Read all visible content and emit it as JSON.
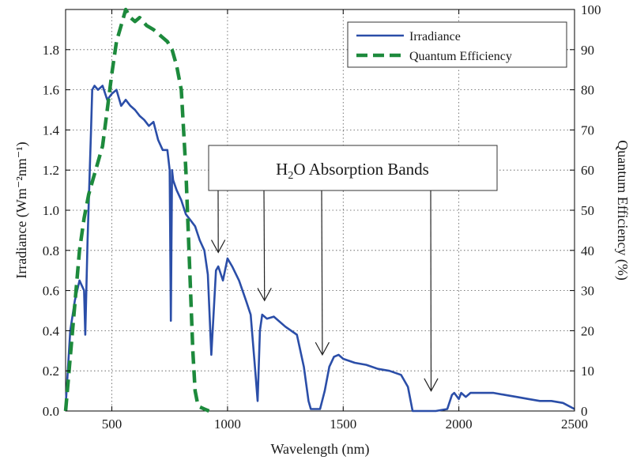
{
  "chart_data": {
    "type": "line",
    "title": "",
    "xlabel": "Wavelength (nm)",
    "ylabel": "Irradiance (Wm⁻²nm⁻¹)",
    "y2label": "Quantum Efficiency (%)",
    "xlim": [
      300,
      2500
    ],
    "ylim": [
      0,
      2.0
    ],
    "y2lim": [
      0,
      100
    ],
    "xticks": [
      500,
      1000,
      1500,
      2000,
      2500
    ],
    "yticks": [
      0.0,
      0.2,
      0.4,
      0.6,
      0.8,
      1.0,
      1.2,
      1.4,
      1.6,
      1.8
    ],
    "ytick_labels": [
      "0.0",
      "0.2",
      "0.4",
      "0.6",
      "0.8",
      "1.0",
      "1.2",
      "1.4",
      "1.6",
      "1.8"
    ],
    "y2ticks": [
      0,
      10,
      20,
      30,
      40,
      50,
      60,
      70,
      80,
      90,
      100
    ],
    "grid": true,
    "legend_position": "top-right",
    "series": [
      {
        "name": "Irradiance",
        "axis": "left",
        "color": "#2b4ea8",
        "style": "solid",
        "x": [
          300,
          320,
          340,
          360,
          380,
          385,
          395,
          410,
          415,
          425,
          440,
          460,
          480,
          500,
          520,
          540,
          560,
          580,
          600,
          620,
          640,
          660,
          680,
          700,
          720,
          740,
          750,
          755,
          760,
          765,
          780,
          800,
          820,
          840,
          860,
          880,
          900,
          915,
          930,
          950,
          960,
          980,
          1000,
          1020,
          1050,
          1080,
          1100,
          1120,
          1130,
          1140,
          1150,
          1170,
          1200,
          1250,
          1300,
          1330,
          1350,
          1360,
          1400,
          1420,
          1440,
          1460,
          1480,
          1500,
          1550,
          1600,
          1650,
          1700,
          1750,
          1780,
          1800,
          1820,
          1900,
          1950,
          1970,
          1980,
          2000,
          2010,
          2030,
          2050,
          2100,
          2150,
          2200,
          2250,
          2300,
          2350,
          2400,
          2450,
          2500
        ],
        "y": [
          0.02,
          0.4,
          0.55,
          0.65,
          0.6,
          0.38,
          0.85,
          1.4,
          1.6,
          1.62,
          1.6,
          1.62,
          1.55,
          1.58,
          1.6,
          1.52,
          1.55,
          1.52,
          1.5,
          1.47,
          1.45,
          1.42,
          1.44,
          1.35,
          1.3,
          1.3,
          1.2,
          0.45,
          1.2,
          1.15,
          1.1,
          1.05,
          0.98,
          0.95,
          0.92,
          0.85,
          0.8,
          0.68,
          0.28,
          0.7,
          0.72,
          0.65,
          0.76,
          0.72,
          0.65,
          0.55,
          0.48,
          0.2,
          0.05,
          0.4,
          0.48,
          0.46,
          0.47,
          0.42,
          0.38,
          0.22,
          0.05,
          0.01,
          0.01,
          0.1,
          0.22,
          0.27,
          0.28,
          0.26,
          0.24,
          0.23,
          0.21,
          0.2,
          0.18,
          0.12,
          0.0,
          0.0,
          0.0,
          0.01,
          0.08,
          0.09,
          0.06,
          0.09,
          0.07,
          0.09,
          0.09,
          0.09,
          0.08,
          0.07,
          0.06,
          0.05,
          0.05,
          0.04,
          0.01
        ]
      },
      {
        "name": "Quantum Efficiency",
        "axis": "right",
        "color": "#1d8a3c",
        "style": "dashed",
        "x": [
          300,
          330,
          360,
          380,
          400,
          420,
          440,
          460,
          480,
          500,
          520,
          540,
          560,
          580,
          600,
          620,
          650,
          680,
          700,
          720,
          740,
          760,
          780,
          800,
          820,
          840,
          850,
          860,
          870,
          880,
          900,
          920
        ],
        "y": [
          0,
          20,
          40,
          48,
          54,
          58,
          62,
          66,
          75,
          84,
          92,
          96,
          100,
          98,
          97,
          98,
          96,
          95,
          94,
          93,
          92,
          90,
          86,
          80,
          60,
          30,
          15,
          5,
          2,
          1,
          0.5,
          0
        ]
      }
    ],
    "annotation": {
      "text_prefix": "H",
      "text_sub": "2",
      "text_suffix": "O Absorption Bands",
      "arrows": [
        {
          "x": 960,
          "y": 0.79
        },
        {
          "x": 1160,
          "y": 0.55
        },
        {
          "x": 1410,
          "y": 0.28
        },
        {
          "x": 1880,
          "y": 0.1
        }
      ]
    }
  }
}
